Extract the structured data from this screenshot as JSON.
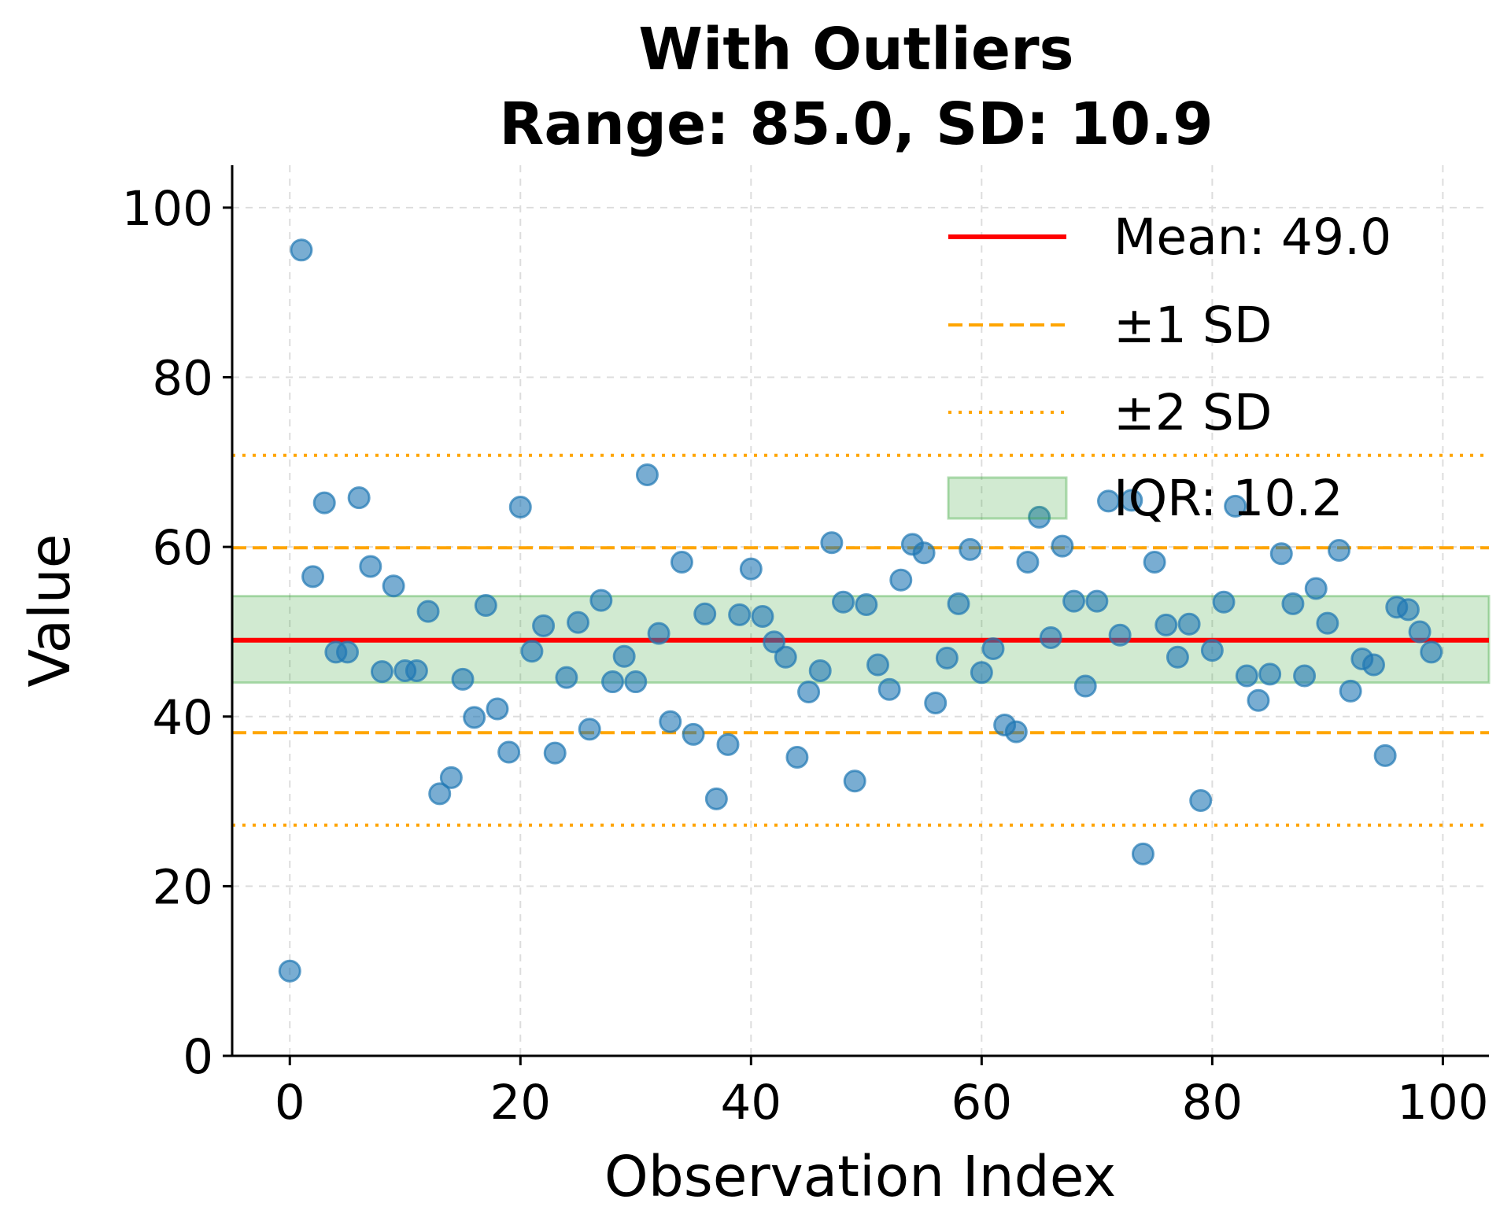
{
  "chart_data": {
    "type": "scatter",
    "title": "With Outliers",
    "subtitle": "Range: 85.0, SD: 10.9",
    "xlabel": "Observation Index",
    "ylabel": "Value",
    "xlim": [
      -5,
      104
    ],
    "ylim": [
      0,
      105
    ],
    "xticks": [
      0,
      20,
      40,
      60,
      80,
      100
    ],
    "yticks": [
      0,
      20,
      40,
      60,
      80,
      100
    ],
    "grid": true,
    "legend_position": "top-right",
    "colors": {
      "points": "#1f77b4",
      "mean": "#ff0000",
      "sd": "#ffa500",
      "iqr": "#2ca02c"
    },
    "reference": {
      "mean": 49.0,
      "sd1": [
        38.1,
        59.9
      ],
      "sd2": [
        27.2,
        70.8
      ],
      "iqr": [
        44.0,
        54.2
      ]
    },
    "legend": [
      {
        "key": "mean",
        "label": "Mean: 49.0"
      },
      {
        "key": "sd1",
        "label": "±1 SD"
      },
      {
        "key": "sd2",
        "label": "±2 SD"
      },
      {
        "key": "iqr",
        "label": "IQR: 10.2"
      }
    ],
    "x": [
      0,
      1,
      2,
      3,
      4,
      5,
      6,
      7,
      8,
      9,
      10,
      11,
      12,
      13,
      14,
      15,
      16,
      17,
      18,
      19,
      20,
      21,
      22,
      23,
      24,
      25,
      26,
      27,
      28,
      29,
      30,
      31,
      32,
      33,
      34,
      35,
      36,
      37,
      38,
      39,
      40,
      41,
      42,
      43,
      44,
      45,
      46,
      47,
      48,
      49,
      50,
      51,
      52,
      53,
      54,
      55,
      56,
      57,
      58,
      59,
      60,
      61,
      62,
      63,
      64,
      65,
      66,
      67,
      68,
      69,
      70,
      71,
      72,
      73,
      74,
      75,
      76,
      77,
      78,
      79,
      80,
      81,
      82,
      83,
      84,
      85,
      86,
      87,
      88,
      89,
      90,
      91,
      92,
      93,
      94,
      95,
      96,
      97,
      98,
      99
    ],
    "y": [
      10.0,
      95.0,
      56.5,
      65.2,
      47.6,
      47.6,
      65.8,
      57.7,
      45.3,
      55.4,
      45.4,
      45.4,
      52.4,
      30.9,
      32.8,
      44.4,
      39.9,
      53.1,
      40.9,
      35.8,
      64.7,
      47.7,
      50.7,
      35.7,
      44.6,
      51.1,
      38.5,
      53.7,
      44.1,
      47.1,
      44.1,
      68.5,
      49.8,
      39.4,
      58.2,
      37.9,
      52.1,
      30.3,
      36.7,
      52.0,
      57.4,
      51.8,
      48.8,
      47.0,
      35.2,
      42.9,
      45.4,
      60.5,
      53.5,
      32.4,
      53.2,
      46.1,
      43.2,
      56.1,
      60.3,
      59.3,
      41.6,
      46.9,
      53.3,
      59.7,
      45.2,
      48.0,
      39.0,
      38.2,
      58.2,
      63.5,
      49.3,
      60.1,
      53.6,
      43.6,
      53.6,
      65.4,
      49.6,
      65.5,
      23.8,
      58.2,
      50.8,
      47.0,
      50.9,
      30.1,
      47.8,
      53.5,
      64.8,
      44.8,
      41.9,
      45.0,
      59.2,
      53.3,
      44.8,
      55.1,
      51.0,
      59.6,
      43.0,
      46.8,
      46.1,
      35.4,
      52.9,
      52.6,
      50.0,
      47.6
    ]
  }
}
